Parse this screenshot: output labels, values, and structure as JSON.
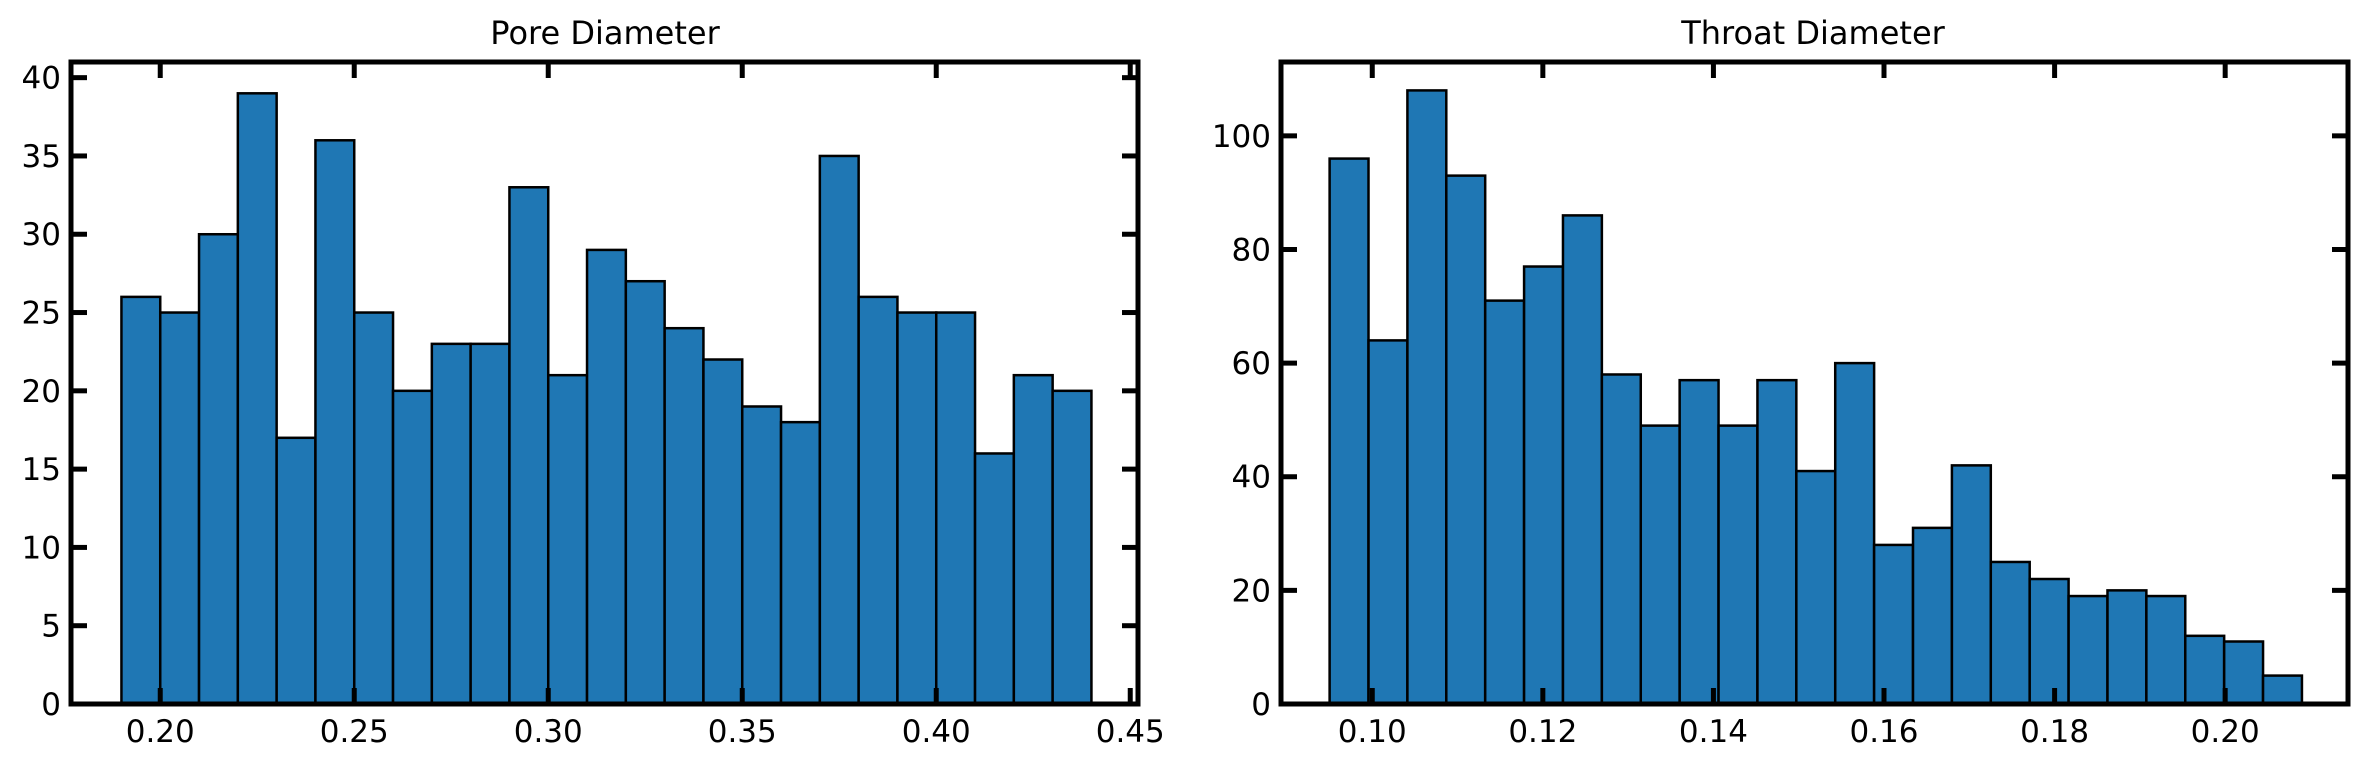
{
  "bar_color": "#1f77b4",
  "chart_data": [
    {
      "type": "bar",
      "title": "Pore Diameter",
      "xlabel": "",
      "ylabel": "",
      "xlim": [
        0.177,
        0.452
      ],
      "ylim": [
        0,
        41
      ],
      "bin_start": 0.19,
      "bin_width": 0.01,
      "values": [
        26,
        25,
        30,
        39,
        17,
        36,
        25,
        20,
        23,
        23,
        33,
        21,
        29,
        27,
        24,
        22,
        19,
        18,
        35,
        26,
        25,
        25,
        16,
        21,
        20
      ],
      "xticks": [
        0.2,
        0.25,
        0.3,
        0.35,
        0.4,
        0.45
      ],
      "xtick_labels": [
        "0.20",
        "0.25",
        "0.30",
        "0.35",
        "0.40",
        "0.45"
      ],
      "yticks": [
        0,
        5,
        10,
        15,
        20,
        25,
        30,
        35,
        40
      ],
      "ytick_labels": [
        "0",
        "5",
        "10",
        "15",
        "20",
        "25",
        "30",
        "35",
        "40"
      ],
      "grid": false,
      "legend": "none"
    },
    {
      "type": "bar",
      "title": "Throat Diameter",
      "xlabel": "",
      "ylabel": "",
      "xlim": [
        0.0893,
        0.2144
      ],
      "ylim": [
        0,
        113
      ],
      "bin_start": 0.095,
      "bin_width": 0.00456,
      "values": [
        96,
        64,
        108,
        93,
        71,
        77,
        86,
        58,
        49,
        57,
        49,
        57,
        41,
        60,
        28,
        31,
        42,
        25,
        22,
        19,
        20,
        19,
        12,
        11,
        5
      ],
      "xticks": [
        0.1,
        0.12,
        0.14,
        0.16,
        0.18,
        0.2
      ],
      "xtick_labels": [
        "0.10",
        "0.12",
        "0.14",
        "0.16",
        "0.18",
        "0.20"
      ],
      "yticks": [
        0,
        20,
        40,
        60,
        80,
        100
      ],
      "ytick_labels": [
        "0",
        "20",
        "40",
        "60",
        "80",
        "100"
      ],
      "grid": false,
      "legend": "none"
    }
  ]
}
